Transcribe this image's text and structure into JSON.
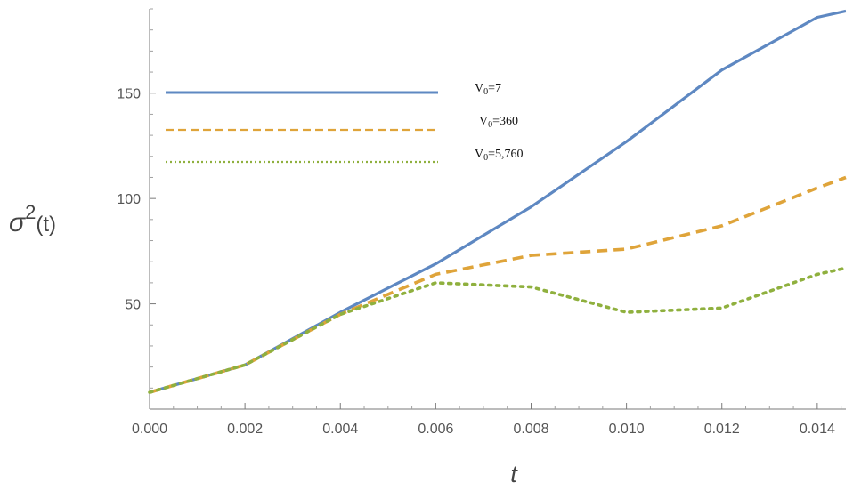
{
  "chart_data": {
    "type": "line",
    "xlabel": "t",
    "ylabel": {
      "base": "σ",
      "sup": "2",
      "rest": "(t)"
    },
    "xlim": [
      0,
      0.0146
    ],
    "ylim": [
      0,
      190
    ],
    "xticks": [
      0,
      0.002,
      0.004,
      0.006,
      0.008,
      0.01,
      0.012,
      0.014
    ],
    "xtick_labels": [
      "0.000",
      "0.002",
      "0.004",
      "0.006",
      "0.008",
      "0.010",
      "0.012",
      "0.014"
    ],
    "yticks": [
      50,
      100,
      150
    ],
    "ytick_labels": [
      "50",
      "100",
      "150"
    ],
    "grid": false,
    "legend_position": "top-left",
    "series": [
      {
        "label_main": "V",
        "label_sub": "0",
        "label_rest": "=7",
        "style": "solid",
        "color": "#5e88c2",
        "x": [
          0,
          0.002,
          0.004,
          0.006,
          0.008,
          0.01,
          0.012,
          0.014,
          0.0146
        ],
        "y": [
          8,
          21,
          46,
          69,
          96,
          127,
          161,
          186,
          189
        ]
      },
      {
        "label_main": "V",
        "label_sub": "0",
        "label_rest": "=360",
        "style": "dashed",
        "color": "#dfa43a",
        "x": [
          0,
          0.002,
          0.004,
          0.006,
          0.008,
          0.01,
          0.012,
          0.014,
          0.0146
        ],
        "y": [
          8,
          21,
          45,
          64,
          73,
          76,
          87,
          105,
          110
        ]
      },
      {
        "label_main": "V",
        "label_sub": "0",
        "label_rest": "=5,760",
        "style": "dotted",
        "color": "#8fb03e",
        "x": [
          0,
          0.002,
          0.004,
          0.006,
          0.008,
          0.01,
          0.012,
          0.014,
          0.0146
        ],
        "y": [
          8,
          21,
          45,
          60,
          58,
          46,
          48,
          64,
          67
        ]
      }
    ]
  }
}
